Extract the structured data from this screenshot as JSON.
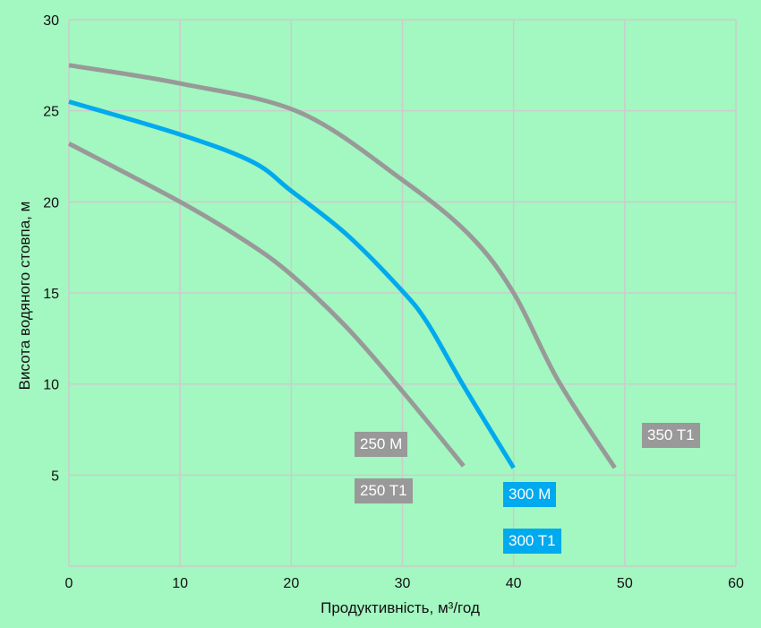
{
  "chart_data": {
    "type": "line",
    "xlabel": "Продуктивність, м³/год",
    "ylabel": "Висота водяного стовпа, м",
    "xlim": [
      0,
      60
    ],
    "ylim": [
      0,
      30
    ],
    "xticks": [
      0,
      10,
      20,
      30,
      40,
      50,
      60
    ],
    "yticks": [
      5,
      10,
      15,
      20,
      25,
      30
    ],
    "grid": true,
    "colors": {
      "gray": "#999999",
      "blue": "#00aaee",
      "grid": "#cccccc",
      "background": "#a3f7c0"
    },
    "series": [
      {
        "labels": [
          "350 T1"
        ],
        "color": "#999999",
        "points": [
          [
            0,
            27.5
          ],
          [
            10,
            26.5
          ],
          [
            20.8,
            24.9
          ],
          [
            30,
            21.2
          ],
          [
            36,
            18.2
          ],
          [
            40,
            15
          ],
          [
            44,
            10.2
          ],
          [
            49.1,
            5.4
          ]
        ]
      },
      {
        "labels": [
          "300 M",
          "300 T1"
        ],
        "color": "#00aaee",
        "points": [
          [
            0,
            25.5
          ],
          [
            10,
            23.7
          ],
          [
            16.5,
            22.2
          ],
          [
            20,
            20.6
          ],
          [
            25,
            18.2
          ],
          [
            30,
            15.1
          ],
          [
            32.3,
            13.3
          ],
          [
            35.5,
            9.9
          ],
          [
            40,
            5.4
          ]
        ]
      },
      {
        "labels": [
          "250 M",
          "250 T1"
        ],
        "color": "#999999",
        "points": [
          [
            0,
            23.2
          ],
          [
            10,
            20
          ],
          [
            16,
            17.8
          ],
          [
            20,
            16
          ],
          [
            25,
            13.1
          ],
          [
            30,
            9.6
          ],
          [
            35.5,
            5.5
          ]
        ]
      }
    ],
    "annotations": [
      {
        "text": "250 M",
        "color": "#999999"
      },
      {
        "text": "250 T1",
        "color": "#999999"
      },
      {
        "text": "300 M",
        "color": "#00aaee"
      },
      {
        "text": "300 T1",
        "color": "#00aaee"
      },
      {
        "text": "350 T1",
        "color": "#999999"
      }
    ]
  }
}
